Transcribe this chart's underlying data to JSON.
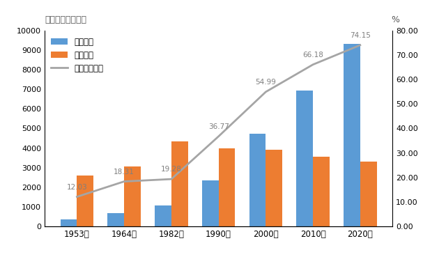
{
  "years": [
    "1953年",
    "1964年",
    "1982年",
    "1990年",
    "2000年",
    "2010年",
    "2020年"
  ],
  "urban": [
    355,
    660,
    1050,
    2350,
    4750,
    6950,
    9350
  ],
  "rural": [
    2600,
    3050,
    4350,
    4000,
    3900,
    3550,
    3300
  ],
  "pct": [
    12.03,
    18.31,
    19.28,
    36.77,
    54.99,
    66.18,
    74.15
  ],
  "urban_color": "#5B9BD5",
  "rural_color": "#ED7D31",
  "line_color": "#A5A5A5",
  "pct_label_color": "#7F7F7F",
  "ylabel_left": "常住人口（万人）",
  "ylabel_right": "%",
  "ylim_left": [
    0,
    10000
  ],
  "ylim_right": [
    0,
    80
  ],
  "yticks_left": [
    0,
    1000,
    2000,
    3000,
    4000,
    5000,
    6000,
    7000,
    8000,
    9000,
    10000
  ],
  "yticks_right": [
    0.0,
    10.0,
    20.0,
    30.0,
    40.0,
    50.0,
    60.0,
    70.0,
    80.0
  ],
  "legend_urban": "城镇人口",
  "legend_rural": "乡村人口",
  "legend_line": "城镇人口比重",
  "bar_width": 0.35,
  "bg_color": "#FFFFFF"
}
